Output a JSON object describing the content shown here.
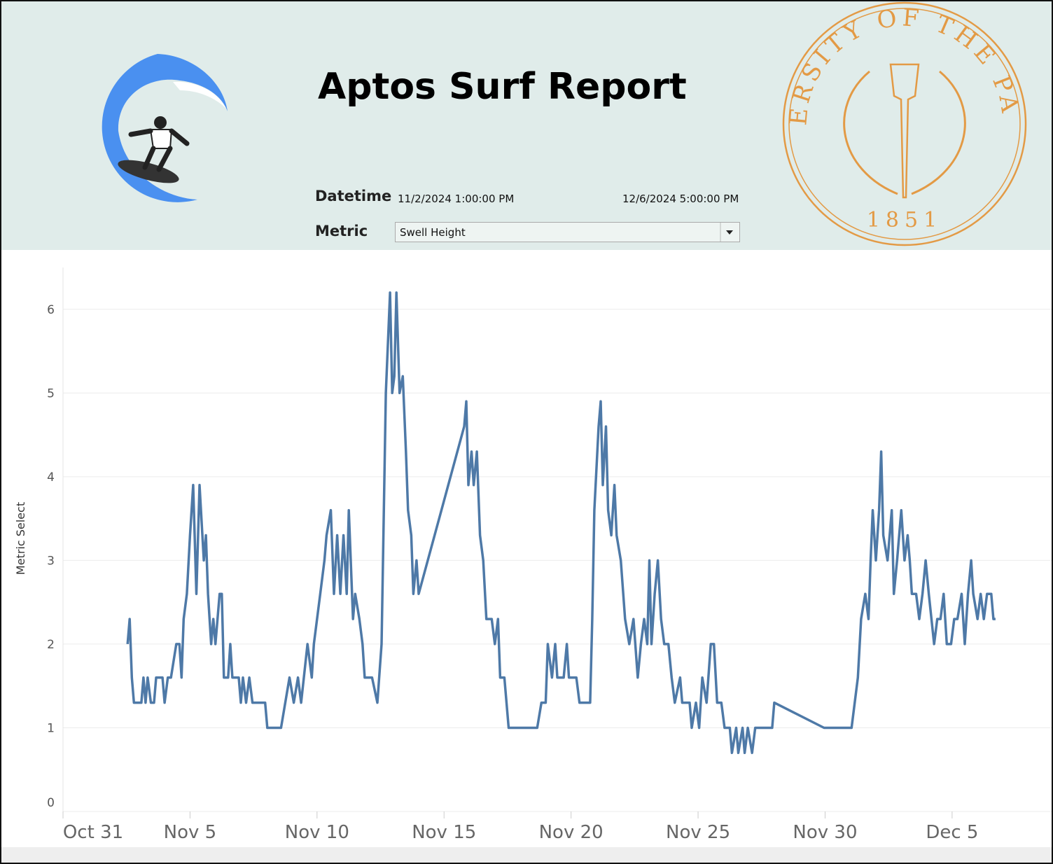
{
  "header": {
    "title": "Aptos Surf Report",
    "logo": {
      "ring_text": "UNIVERSITY OF THE PACIFIC",
      "year": "1851"
    }
  },
  "filters": {
    "datetime_label": "Datetime",
    "datetime_start": "11/2/2024 1:00:00 PM",
    "datetime_end": "12/6/2024 5:00:00 PM",
    "metric_label": "Metric",
    "metric_value": "Swell Height"
  },
  "chart_data": {
    "type": "line",
    "y_label": "Metric Select",
    "color": "#4e79a7",
    "grid": true,
    "xlim": [
      "2024-10-31T00:00",
      "2024-12-08T22:00"
    ],
    "xticks": [
      {
        "value": "2024-10-31T00:00",
        "label": "Oct 31"
      },
      {
        "value": "2024-11-05T00:00",
        "label": "Nov 5"
      },
      {
        "value": "2024-11-10T00:00",
        "label": "Nov 10"
      },
      {
        "value": "2024-11-15T00:00",
        "label": "Nov 15"
      },
      {
        "value": "2024-11-20T00:00",
        "label": "Nov 20"
      },
      {
        "value": "2024-11-25T00:00",
        "label": "Nov 25"
      },
      {
        "value": "2024-11-30T00:00",
        "label": "Nov 30"
      },
      {
        "value": "2024-12-05T00:00",
        "label": "Dec 5"
      }
    ],
    "ylim": [
      0,
      6.5
    ],
    "yticks": [
      0,
      1,
      2,
      3,
      4,
      5,
      6
    ],
    "x": [
      "2024-11-02T13:00",
      "2024-11-02T15:00",
      "2024-11-02T17:00",
      "2024-11-02T19:00",
      "2024-11-03T02:00",
      "2024-11-03T04:00",
      "2024-11-03T06:00",
      "2024-11-03T08:00",
      "2024-11-03T11:00",
      "2024-11-03T14:00",
      "2024-11-03T16:00",
      "2024-11-03T22:00",
      "2024-11-04T00:00",
      "2024-11-04T03:00",
      "2024-11-04T06:00",
      "2024-11-04T11:00",
      "2024-11-04T14:00",
      "2024-11-04T16:00",
      "2024-11-04T18:00",
      "2024-11-04T21:00",
      "2024-11-05T00:00",
      "2024-11-05T03:00",
      "2024-11-05T06:00",
      "2024-11-05T09:00",
      "2024-11-05T13:00",
      "2024-11-05T15:00",
      "2024-11-05T17:00",
      "2024-11-05T20:00",
      "2024-11-05T22:00",
      "2024-11-06T00:00",
      "2024-11-06T04:00",
      "2024-11-06T06:00",
      "2024-11-06T08:00",
      "2024-11-06T12:00",
      "2024-11-06T14:00",
      "2024-11-06T16:00",
      "2024-11-06T22:00",
      "2024-11-07T00:00",
      "2024-11-07T02:00",
      "2024-11-07T05:00",
      "2024-11-07T08:00",
      "2024-11-07T11:00",
      "2024-11-07T23:00",
      "2024-11-08T01:00",
      "2024-11-08T14:00",
      "2024-11-08T22:00",
      "2024-11-09T02:00",
      "2024-11-09T06:00",
      "2024-11-09T09:00",
      "2024-11-09T15:00",
      "2024-11-09T19:00",
      "2024-11-09T21:00",
      "2024-11-10T03:00",
      "2024-11-10T07:00",
      "2024-11-10T09:00",
      "2024-11-10T13:00",
      "2024-11-10T16:00",
      "2024-11-10T19:00",
      "2024-11-10T22:00",
      "2024-11-11T01:00",
      "2024-11-11T04:00",
      "2024-11-11T06:00",
      "2024-11-11T10:00",
      "2024-11-11T12:00",
      "2024-11-11T16:00",
      "2024-11-11T19:00",
      "2024-11-11T21:00",
      "2024-11-12T00:00",
      "2024-11-12T04:00",
      "2024-11-12T09:00",
      "2024-11-12T13:00",
      "2024-11-12T17:00",
      "2024-11-12T21:00",
      "2024-11-12T23:00",
      "2024-11-13T01:00",
      "2024-11-13T03:00",
      "2024-11-13T06:00",
      "2024-11-13T09:00",
      "2024-11-13T12:00",
      "2024-11-13T14:00",
      "2024-11-13T17:00",
      "2024-11-13T19:00",
      "2024-11-13T22:00",
      "2024-11-14T00:00",
      "2024-11-15T19:00",
      "2024-11-15T21:00",
      "2024-11-15T23:00",
      "2024-11-16T02:00",
      "2024-11-16T04:00",
      "2024-11-16T07:00",
      "2024-11-16T10:00",
      "2024-11-16T13:00",
      "2024-11-16T16:00",
      "2024-11-16T21:00",
      "2024-11-17T00:00",
      "2024-11-17T03:00",
      "2024-11-17T05:00",
      "2024-11-17T09:00",
      "2024-11-17T13:00",
      "2024-11-18T16:00",
      "2024-11-18T20:00",
      "2024-11-19T00:00",
      "2024-11-19T02:00",
      "2024-11-19T06:00",
      "2024-11-19T09:00",
      "2024-11-19T11:00",
      "2024-11-19T17:00",
      "2024-11-19T20:00",
      "2024-11-19T22:00",
      "2024-11-20T05:00",
      "2024-11-20T08:00",
      "2024-11-20T18:00",
      "2024-11-20T20:00",
      "2024-11-20T22:00",
      "2024-11-21T02:00",
      "2024-11-21T04:00",
      "2024-11-21T06:00",
      "2024-11-21T09:00",
      "2024-11-21T11:00",
      "2024-11-21T14:00",
      "2024-11-21T17:00",
      "2024-11-21T19:00",
      "2024-11-21T23:00",
      "2024-11-22T03:00",
      "2024-11-22T07:00",
      "2024-11-22T11:00",
      "2024-11-22T15:00",
      "2024-11-22T18:00",
      "2024-11-22T21:00",
      "2024-11-23T00:00",
      "2024-11-23T02:00",
      "2024-11-23T04:00",
      "2024-11-23T07:00",
      "2024-11-23T10:00",
      "2024-11-23T13:00",
      "2024-11-23T16:00",
      "2024-11-23T20:00",
      "2024-11-23T23:00",
      "2024-11-24T02:00",
      "2024-11-24T07:00",
      "2024-11-24T09:00",
      "2024-11-24T16:00",
      "2024-11-24T18:00",
      "2024-11-24T22:00",
      "2024-11-25T01:00",
      "2024-11-25T04:00",
      "2024-11-25T08:00",
      "2024-11-25T12:00",
      "2024-11-25T15:00",
      "2024-11-25T18:00",
      "2024-11-25T22:00",
      "2024-11-26T01:00",
      "2024-11-26T06:00",
      "2024-11-26T08:00",
      "2024-11-26T12:00",
      "2024-11-26T14:00",
      "2024-11-26T18:00",
      "2024-11-26T20:00",
      "2024-11-26T23:00",
      "2024-11-27T03:00",
      "2024-11-27T06:00",
      "2024-11-27T22:00",
      "2024-11-28T00:00",
      "2024-11-29T23:00",
      "2024-12-01T01:00",
      "2024-12-01T07:00",
      "2024-12-01T10:00",
      "2024-12-01T14:00",
      "2024-12-01T17:00",
      "2024-12-01T19:00",
      "2024-12-01T21:00",
      "2024-12-02T00:00",
      "2024-12-02T03:00",
      "2024-12-02T05:00",
      "2024-12-02T07:00",
      "2024-12-02T11:00",
      "2024-12-02T15:00",
      "2024-12-02T17:00",
      "2024-12-02T20:00",
      "2024-12-03T00:00",
      "2024-12-03T03:00",
      "2024-12-03T06:00",
      "2024-12-03T08:00",
      "2024-12-03T10:00",
      "2024-12-03T14:00",
      "2024-12-03T17:00",
      "2024-12-03T20:00",
      "2024-12-03T23:00",
      "2024-12-04T02:00",
      "2024-12-04T07:00",
      "2024-12-04T10:00",
      "2024-12-04T13:00",
      "2024-12-04T16:00",
      "2024-12-04T19:00",
      "2024-12-04T23:00",
      "2024-12-05T02:00",
      "2024-12-05T05:00",
      "2024-12-05T09:00",
      "2024-12-05T12:00",
      "2024-12-05T15:00",
      "2024-12-05T18:00",
      "2024-12-05T20:00",
      "2024-12-06T00:00",
      "2024-12-06T03:00",
      "2024-12-06T06:00",
      "2024-12-06T09:00",
      "2024-12-06T13:00",
      "2024-12-06T15:00",
      "2024-12-06T17:00"
    ],
    "values": [
      2.0,
      2.3,
      1.6,
      1.3,
      1.3,
      1.6,
      1.3,
      1.6,
      1.3,
      1.3,
      1.6,
      1.6,
      1.3,
      1.6,
      1.6,
      2.0,
      2.0,
      1.6,
      2.3,
      2.6,
      3.3,
      3.9,
      2.6,
      3.9,
      3.0,
      3.3,
      2.6,
      2.0,
      2.3,
      2.0,
      2.6,
      2.6,
      1.6,
      1.6,
      2.0,
      1.6,
      1.6,
      1.3,
      1.6,
      1.3,
      1.6,
      1.3,
      1.3,
      1.0,
      1.0,
      1.6,
      1.3,
      1.6,
      1.3,
      2.0,
      1.6,
      2.0,
      2.6,
      3.0,
      3.3,
      3.6,
      2.6,
      3.3,
      2.6,
      3.3,
      2.6,
      3.6,
      2.3,
      2.6,
      2.3,
      2.0,
      1.6,
      1.6,
      1.6,
      1.3,
      2.0,
      5.0,
      6.2,
      5.0,
      5.2,
      6.2,
      5.0,
      5.2,
      4.3,
      3.6,
      3.3,
      2.6,
      3.0,
      2.6,
      4.6,
      4.9,
      3.9,
      4.3,
      3.9,
      4.3,
      3.3,
      3.0,
      2.3,
      2.3,
      2.0,
      2.3,
      1.6,
      1.6,
      1.0,
      1.0,
      1.3,
      1.3,
      2.0,
      1.6,
      2.0,
      1.6,
      1.6,
      2.0,
      1.6,
      1.6,
      1.3,
      1.3,
      2.3,
      3.6,
      4.6,
      4.9,
      3.9,
      4.6,
      3.6,
      3.3,
      3.9,
      3.3,
      3.0,
      2.3,
      2.0,
      2.3,
      1.6,
      2.0,
      2.3,
      2.0,
      3.0,
      2.0,
      2.6,
      3.0,
      2.3,
      2.0,
      2.0,
      1.6,
      1.3,
      1.6,
      1.3,
      1.3,
      1.0,
      1.3,
      1.0,
      1.6,
      1.3,
      2.0,
      2.0,
      1.3,
      1.3,
      1.0,
      1.0,
      0.7,
      1.0,
      0.7,
      1.0,
      0.7,
      1.0,
      0.7,
      1.0,
      1.0,
      1.3,
      1.0,
      1.0,
      1.6,
      2.3,
      2.6,
      2.3,
      3.0,
      3.6,
      3.0,
      3.6,
      4.3,
      3.3,
      3.0,
      3.6,
      2.6,
      3.0,
      3.6,
      3.0,
      3.3,
      3.0,
      2.6,
      2.6,
      2.3,
      2.6,
      3.0,
      2.6,
      2.0,
      2.3,
      2.3,
      2.6,
      2.0,
      2.0,
      2.3,
      2.3,
      2.6,
      2.0,
      2.6,
      3.0,
      2.6,
      2.3,
      2.6,
      2.3,
      2.6,
      2.6,
      2.3,
      2.3
    ]
  }
}
